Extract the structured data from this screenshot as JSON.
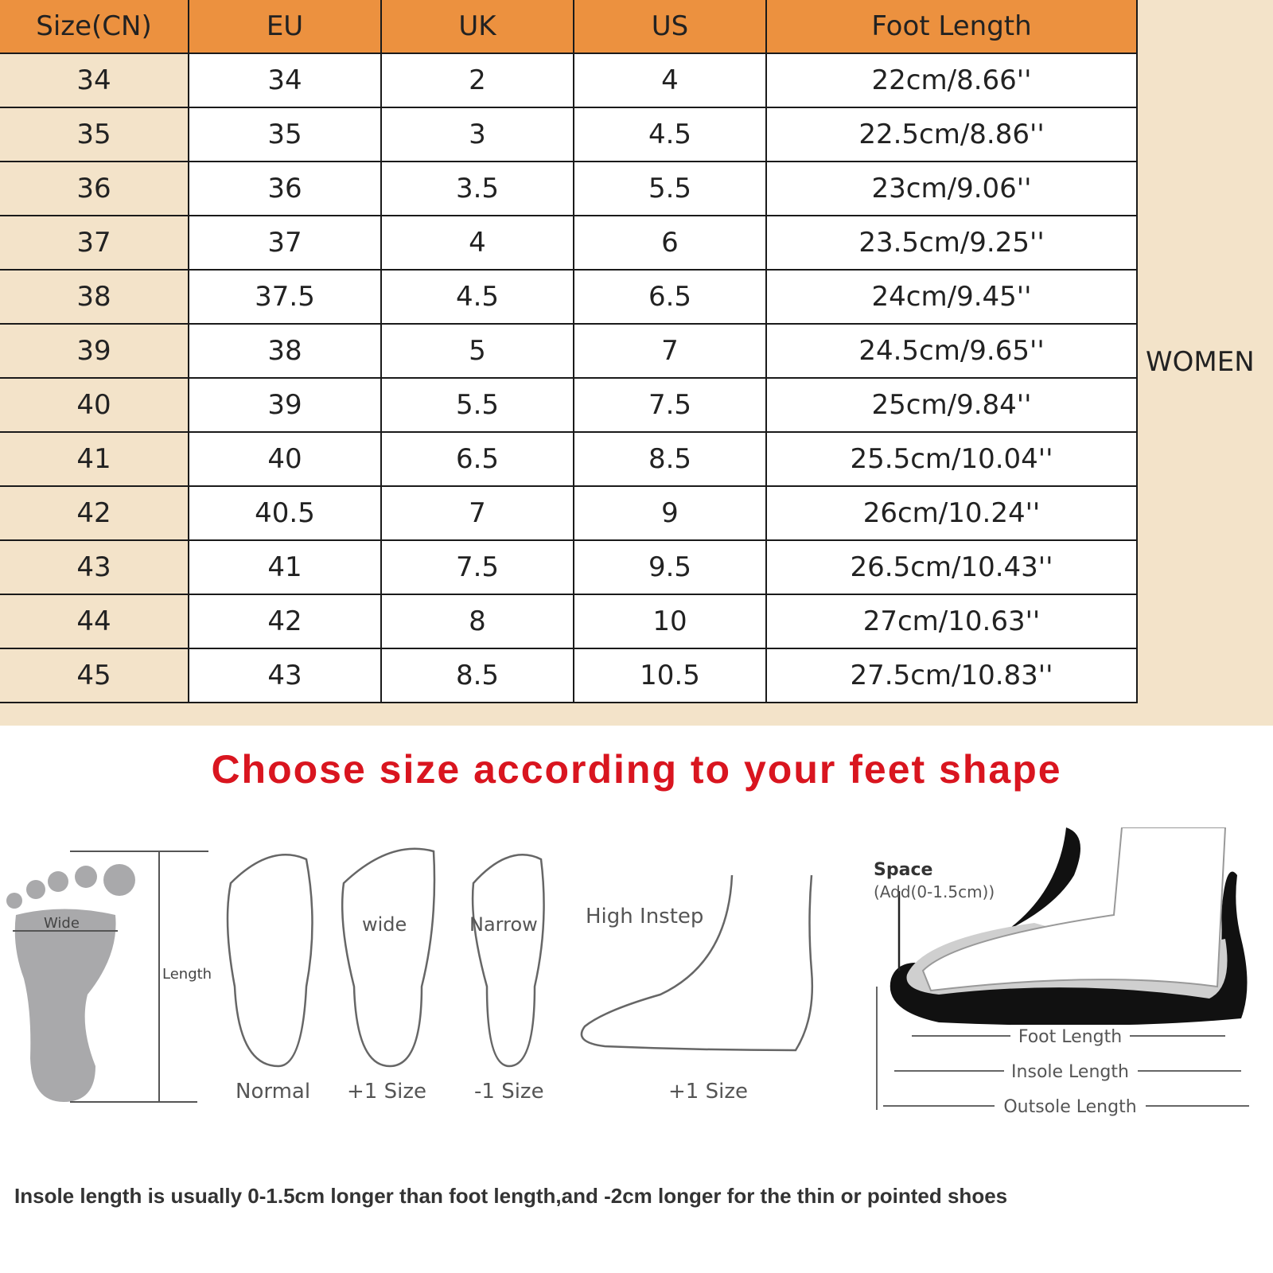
{
  "table": {
    "headers": [
      "Size(CN)",
      "EU",
      "UK",
      "US",
      "Foot Length"
    ],
    "rows": [
      [
        "34",
        "34",
        "2",
        "4",
        "22cm/8.66''"
      ],
      [
        "35",
        "35",
        "3",
        "4.5",
        "22.5cm/8.86''"
      ],
      [
        "36",
        "36",
        "3.5",
        "5.5",
        "23cm/9.06''"
      ],
      [
        "37",
        "37",
        "4",
        "6",
        "23.5cm/9.25''"
      ],
      [
        "38",
        "37.5",
        "4.5",
        "6.5",
        "24cm/9.45''"
      ],
      [
        "39",
        "38",
        "5",
        "7",
        "24.5cm/9.65''"
      ],
      [
        "40",
        "39",
        "5.5",
        "7.5",
        "25cm/9.84''"
      ],
      [
        "41",
        "40",
        "6.5",
        "8.5",
        "25.5cm/10.04''"
      ],
      [
        "42",
        "40.5",
        "7",
        "9",
        "26cm/10.24''"
      ],
      [
        "43",
        "41",
        "7.5",
        "9.5",
        "26.5cm/10.43''"
      ],
      [
        "44",
        "42",
        "8",
        "10",
        "27cm/10.63''"
      ],
      [
        "45",
        "43",
        "8.5",
        "10.5",
        "27.5cm/10.83''"
      ]
    ],
    "side_label": "WOMEN",
    "colors": {
      "header": "#ec913f",
      "first_column": "#f3e3c9"
    }
  },
  "title": "Choose size according to your feet shape",
  "title_color": "#d9151f",
  "diagrams": {
    "foot_print": {
      "wide": "Wide",
      "length": "Length"
    },
    "shapes": [
      {
        "label": "",
        "caption": "Normal"
      },
      {
        "label": "wide",
        "caption": "+1 Size"
      },
      {
        "label": "Narrow",
        "caption": "-1 Size"
      },
      {
        "label": "High Instep",
        "caption": "+1 Size"
      }
    ],
    "shoe": {
      "space": "Space",
      "space_note": "(Add(0-1.5cm))",
      "foot_length": "Foot Length",
      "insole_length": "Insole Length",
      "outsole_length": "Outsole Length"
    }
  },
  "note": "Insole length is usually 0-1.5cm longer than foot length,and -2cm longer for the thin or pointed shoes"
}
